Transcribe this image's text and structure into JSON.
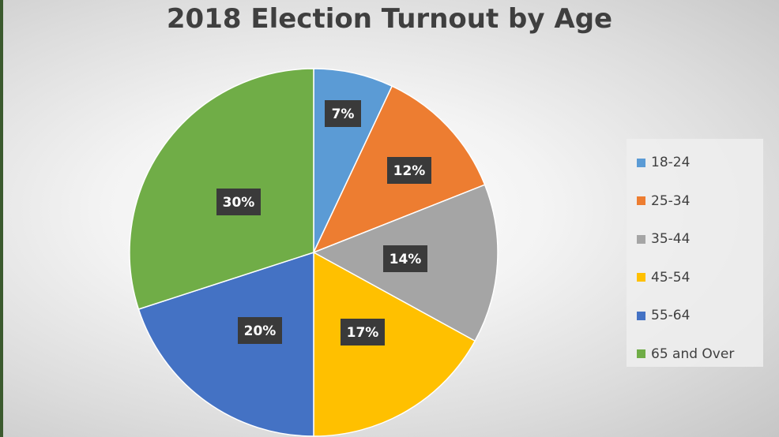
{
  "chart_data": {
    "type": "pie",
    "title": "2018 Election Turnout by Age",
    "categories": [
      "18-24",
      "25-34",
      "35-44",
      "45-54",
      "55-64",
      "65 and Over"
    ],
    "values": [
      7,
      12,
      14,
      17,
      20,
      30
    ],
    "data_labels": [
      "7%",
      "12%",
      "14%",
      "17%",
      "20%",
      "30%"
    ],
    "colors": [
      "#5b9bd5",
      "#ed7d31",
      "#a5a5a5",
      "#ffc000",
      "#4472c4",
      "#70ad47"
    ],
    "legend": {
      "position": "right",
      "entries": [
        "18-24",
        "25-34",
        "35-44",
        "45-54",
        "55-64",
        "65 and Over"
      ]
    },
    "start_angle": "12 o'clock",
    "direction": "clockwise"
  }
}
